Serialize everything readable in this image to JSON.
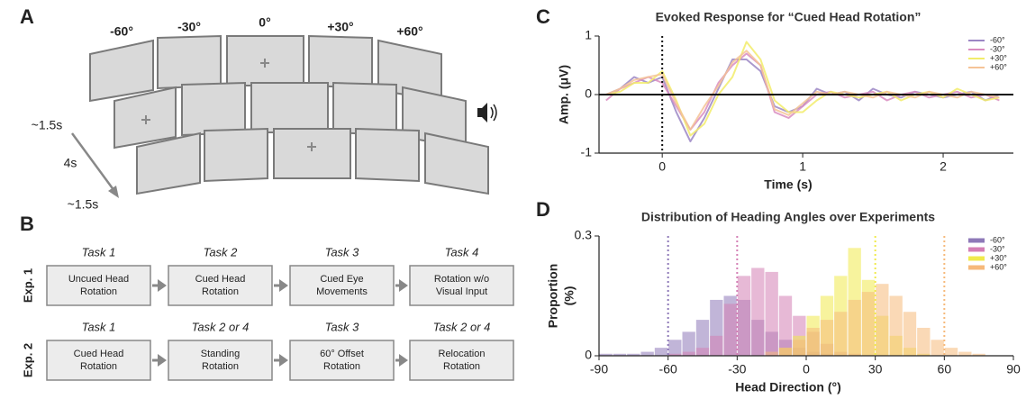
{
  "panel_a": {
    "label": "A",
    "angles": [
      "-60°",
      "-30°",
      "0°",
      "+30°",
      "+60°"
    ],
    "timing": [
      "~1.5s",
      "4s",
      "~1.5s"
    ]
  },
  "panel_b": {
    "label": "B",
    "experiments": [
      {
        "name": "Exp. 1",
        "tasks": [
          {
            "task": "Task 1",
            "lines": [
              "Uncued Head",
              "Rotation"
            ]
          },
          {
            "task": "Task 2",
            "lines": [
              "Cued Head",
              "Rotation"
            ]
          },
          {
            "task": "Task 3",
            "lines": [
              "Cued Eye",
              "Movements"
            ]
          },
          {
            "task": "Task 4",
            "lines": [
              "Rotation w/o",
              "Visual Input"
            ]
          }
        ]
      },
      {
        "name": "Exp. 2",
        "tasks": [
          {
            "task": "Task 1",
            "lines": [
              "Cued Head",
              "Rotation"
            ]
          },
          {
            "task": "Task 2 or 4",
            "lines": [
              "Standing",
              "Rotation"
            ]
          },
          {
            "task": "Task 3",
            "lines": [
              "60° Offset",
              "Rotation"
            ]
          },
          {
            "task": "Task 2 or 4",
            "lines": [
              "Relocation",
              "Rotation"
            ]
          }
        ]
      }
    ]
  },
  "chart_data": [
    {
      "type": "line",
      "panel_label": "C",
      "title": "Evoked Response for “Cued Head Rotation”",
      "x_label": "Time (s)",
      "y_label": "Amp. (μV)",
      "x": [
        -0.4,
        -0.3,
        -0.2,
        -0.1,
        0,
        0.1,
        0.2,
        0.3,
        0.4,
        0.5,
        0.6,
        0.7,
        0.8,
        0.9,
        1.0,
        1.1,
        1.2,
        1.3,
        1.4,
        1.5,
        1.6,
        1.7,
        1.8,
        1.9,
        2.0,
        2.1,
        2.2,
        2.3,
        2.4
      ],
      "series": [
        {
          "name": "-60°",
          "color": "#9b86c4",
          "values": [
            0,
            0.1,
            0.3,
            0.2,
            0.3,
            -0.3,
            -0.8,
            -0.4,
            0.1,
            0.6,
            0.6,
            0.4,
            -0.2,
            -0.3,
            -0.2,
            0.1,
            0,
            0.05,
            -0.1,
            0.1,
            0,
            -0.05,
            0.05,
            0,
            -0.05,
            0,
            0.05,
            -0.1,
            0
          ]
        },
        {
          "name": "-30°",
          "color": "#d98cc0",
          "values": [
            -0.1,
            0.1,
            0.2,
            0.3,
            0.2,
            -0.2,
            -0.6,
            -0.3,
            0.2,
            0.5,
            0.7,
            0.5,
            -0.3,
            -0.4,
            -0.2,
            0,
            0.05,
            -0.05,
            0,
            0.05,
            -0.1,
            0,
            0.05,
            -0.05,
            0,
            0.05,
            -0.05,
            0,
            -0.1
          ]
        },
        {
          "name": "+30°",
          "color": "#f2ec6a",
          "values": [
            0,
            0.05,
            0.2,
            0.2,
            0.4,
            -0.1,
            -0.7,
            -0.5,
            0,
            0.3,
            0.9,
            0.6,
            -0.1,
            -0.3,
            -0.3,
            -0.1,
            0.05,
            0,
            -0.05,
            0,
            0.05,
            -0.1,
            0,
            0.05,
            -0.05,
            0.1,
            0,
            -0.1,
            -0.05
          ]
        },
        {
          "name": "+60°",
          "color": "#f5c397",
          "values": [
            0,
            0.1,
            0.25,
            0.3,
            0.35,
            -0.15,
            -0.6,
            -0.2,
            0.15,
            0.55,
            0.75,
            0.5,
            -0.25,
            -0.35,
            -0.15,
            0.05,
            0,
            0.05,
            0,
            -0.05,
            0.05,
            0,
            -0.05,
            0.05,
            0,
            -0.05,
            0.05,
            0,
            -0.05
          ]
        }
      ],
      "xlim": [
        -0.45,
        2.5
      ],
      "xticks": [
        0,
        1,
        2
      ],
      "ylim": [
        -1,
        1
      ],
      "yticks": [
        -1,
        0,
        1
      ],
      "legend": "upper right"
    },
    {
      "type": "histogram",
      "panel_label": "D",
      "title": "Distribution of Heading Angles over Experiments",
      "x_label": "Head Direction (°)",
      "y_label": [
        "Proportion",
        "(%)"
      ],
      "bins": [
        -90,
        -84,
        -78,
        -72,
        -66,
        -60,
        -54,
        -48,
        -42,
        -36,
        -30,
        -24,
        -18,
        -12,
        -6,
        0,
        6,
        12,
        18,
        24,
        30,
        36,
        42,
        48,
        54,
        60,
        66,
        72,
        78,
        84,
        90
      ],
      "series": [
        {
          "name": "-60°",
          "color": "#8e79b8",
          "values": [
            0.005,
            0.005,
            0.005,
            0.01,
            0.02,
            0.04,
            0.06,
            0.09,
            0.14,
            0.15,
            0.14,
            0.09,
            0.06,
            0.04,
            0.02,
            0.01,
            0.005,
            0,
            0,
            0,
            0,
            0,
            0,
            0,
            0,
            0,
            0,
            0,
            0,
            0
          ]
        },
        {
          "name": "-30°",
          "color": "#d47fb5",
          "values": [
            0,
            0,
            0,
            0,
            0,
            0.005,
            0.01,
            0.02,
            0.05,
            0.13,
            0.2,
            0.22,
            0.21,
            0.15,
            0.1,
            0.06,
            0.03,
            0.01,
            0.005,
            0,
            0,
            0,
            0,
            0,
            0,
            0,
            0,
            0,
            0,
            0
          ]
        },
        {
          "name": "+30°",
          "color": "#f0ea4c",
          "values": [
            0,
            0,
            0,
            0,
            0,
            0,
            0,
            0,
            0,
            0,
            0,
            0,
            0,
            0.02,
            0.05,
            0.1,
            0.15,
            0.2,
            0.27,
            0.19,
            0.1,
            0.05,
            0.02,
            0.005,
            0,
            0,
            0,
            0,
            0,
            0
          ]
        },
        {
          "name": "+60°",
          "color": "#f6b97a",
          "values": [
            0,
            0,
            0,
            0,
            0,
            0,
            0,
            0,
            0,
            0,
            0,
            0,
            0.01,
            0.02,
            0.04,
            0.07,
            0.09,
            0.11,
            0.14,
            0.16,
            0.18,
            0.15,
            0.11,
            0.07,
            0.04,
            0.02,
            0.01,
            0.005,
            0,
            0
          ]
        }
      ],
      "xlim": [
        -90,
        90
      ],
      "xticks": [
        -90,
        -60,
        -30,
        0,
        30,
        60,
        90
      ],
      "ylim": [
        0,
        0.3
      ],
      "yticks": [
        0,
        0.3
      ],
      "legend": "upper right"
    }
  ]
}
